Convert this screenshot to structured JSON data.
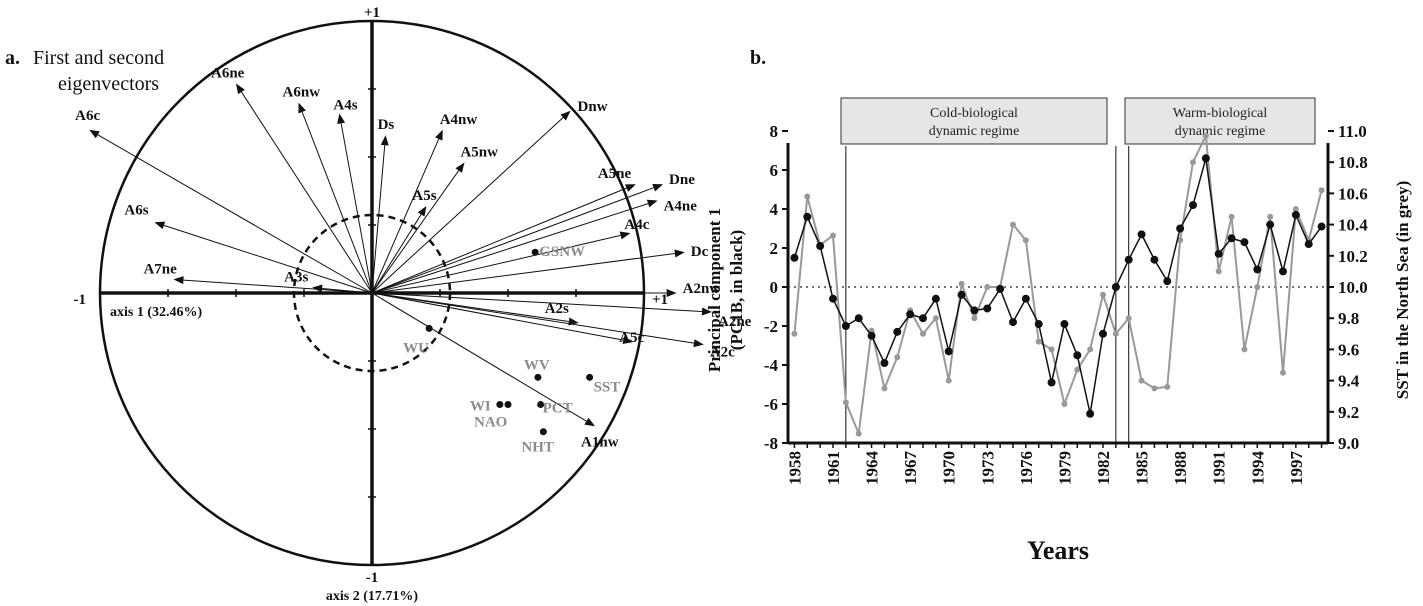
{
  "panel_a": {
    "letter": "a.",
    "title_line1": "First and second",
    "title_line2": "eigenvectors",
    "axis1_label": "axis 1 (32.46%)",
    "axis2_label": "axis 2 (17.71%)",
    "axis_end_pos_y": "+1",
    "axis_end_neg_y": "-1",
    "axis_end_pos_x": "+1",
    "axis_end_neg_x": "-1"
  },
  "panel_b": {
    "letter": "b.",
    "regime_cold_line1": "Cold-biological",
    "regime_cold_line2": "dynamic regime",
    "regime_warm_line1": "Warm-biological",
    "regime_warm_line2": "dynamic regime",
    "xlabel": "Years",
    "ylabel_left_line1": "Principal component 1",
    "ylabel_left_line2": "(PC1B, in black)",
    "ylabel_right": "SST in the North Sea (in grey)"
  },
  "chart_data": [
    {
      "type": "scatter",
      "title": "First and second eigenvectors",
      "xlabel": "axis 1 (32.46%)",
      "ylabel": "axis 2 (17.71%)",
      "xlim": [
        -1,
        1
      ],
      "ylim": [
        -1,
        1
      ],
      "circle_inner_radius": 0.4,
      "vectors": [
        {
          "label": "A6ne",
          "x": -0.5,
          "y": 0.77
        },
        {
          "label": "A6nw",
          "x": -0.27,
          "y": 0.7
        },
        {
          "label": "A4s",
          "x": -0.12,
          "y": 0.66
        },
        {
          "label": "A6c",
          "x": -1.04,
          "y": 0.6
        },
        {
          "label": "Ds",
          "x": 0.05,
          "y": 0.58
        },
        {
          "label": "A4nw",
          "x": 0.26,
          "y": 0.6
        },
        {
          "label": "Dnw",
          "x": 0.73,
          "y": 0.67
        },
        {
          "label": "A5nw",
          "x": 0.34,
          "y": 0.48
        },
        {
          "label": "A5s",
          "x": 0.2,
          "y": 0.32
        },
        {
          "label": "A5ne",
          "x": 0.97,
          "y": 0.4
        },
        {
          "label": "Dne",
          "x": 1.07,
          "y": 0.4
        },
        {
          "label": "A4ne",
          "x": 1.05,
          "y": 0.34
        },
        {
          "label": "A4c",
          "x": 0.95,
          "y": 0.22
        },
        {
          "label": "Dc",
          "x": 1.15,
          "y": 0.15
        },
        {
          "label": "A6s",
          "x": -0.8,
          "y": 0.26
        },
        {
          "label": "A7ne",
          "x": -0.73,
          "y": 0.05
        },
        {
          "label": "A3s",
          "x": -0.22,
          "y": 0.02
        },
        {
          "label": "A2nw",
          "x": 1.12,
          "y": 0.0
        },
        {
          "label": "A2s",
          "x": 0.76,
          "y": -0.11
        },
        {
          "label": "A2ne",
          "x": 1.25,
          "y": -0.07
        },
        {
          "label": "A5c",
          "x": 0.96,
          "y": -0.18
        },
        {
          "label": "A2c",
          "x": 1.22,
          "y": -0.19
        },
        {
          "label": "A1nw",
          "x": 0.82,
          "y": -0.49
        }
      ],
      "passive_variables": [
        {
          "label": "GSNW",
          "x": 0.6,
          "y": 0.15
        },
        {
          "label": "WU",
          "x": 0.21,
          "y": -0.13
        },
        {
          "label": "WV",
          "x": 0.61,
          "y": -0.31
        },
        {
          "label": "SST",
          "x": 0.8,
          "y": -0.31
        },
        {
          "label": "WI",
          "x": 0.47,
          "y": -0.41
        },
        {
          "label": "NAO",
          "x": 0.5,
          "y": -0.41
        },
        {
          "label": "PCT",
          "x": 0.62,
          "y": -0.41
        },
        {
          "label": "NHT",
          "x": 0.63,
          "y": -0.51
        }
      ]
    },
    {
      "type": "line",
      "xlabel": "Years",
      "ylabel": "Principal component 1 (PC1B, in black)",
      "y2label": "SST in the North Sea (in grey)",
      "xlim": [
        1957.5,
        1999.5
      ],
      "ylim": [
        -8,
        8
      ],
      "y2lim": [
        9.0,
        11.0
      ],
      "x_ticks": [
        1958,
        1961,
        1964,
        1967,
        1970,
        1973,
        1976,
        1979,
        1982,
        1985,
        1988,
        1991,
        1994,
        1997
      ],
      "y_ticks": [
        -8,
        -6,
        -4,
        -2,
        0,
        2,
        4,
        6,
        8
      ],
      "y2_ticks": [
        "9.0",
        "9.2",
        "9.4",
        "9.6",
        "9.8",
        "10.0",
        "10.2",
        "10.4",
        "10.6",
        "10.8",
        "11.0"
      ],
      "regime_breaks": [
        1962,
        1983,
        1984
      ],
      "zero_line": 0,
      "x": [
        1958,
        1959,
        1960,
        1961,
        1962,
        1963,
        1964,
        1965,
        1966,
        1967,
        1968,
        1969,
        1970,
        1971,
        1972,
        1973,
        1974,
        1975,
        1976,
        1977,
        1978,
        1979,
        1980,
        1981,
        1982,
        1983,
        1984,
        1985,
        1986,
        1987,
        1988,
        1989,
        1990,
        1991,
        1992,
        1993,
        1994,
        1995,
        1996,
        1997,
        1998,
        1999
      ],
      "series": [
        {
          "name": "PC1B",
          "axis": "left",
          "color": "#111111",
          "values": [
            1.5,
            3.6,
            2.1,
            -0.6,
            -2.0,
            -1.6,
            -2.5,
            -3.9,
            -2.3,
            -1.4,
            -1.6,
            -0.6,
            -3.3,
            -0.4,
            -1.2,
            -1.1,
            -0.1,
            -1.8,
            -0.6,
            -1.9,
            -4.9,
            -1.9,
            -3.5,
            -6.5,
            -2.4,
            0.0,
            1.4,
            2.7,
            1.4,
            0.3,
            3.0,
            4.2,
            6.6,
            1.7,
            2.5,
            2.3,
            0.9,
            3.2,
            0.8,
            3.7,
            2.2,
            3.1
          ]
        },
        {
          "name": "SST",
          "axis": "right",
          "color": "#999999",
          "values": [
            9.7,
            10.58,
            10.27,
            10.33,
            9.26,
            9.06,
            9.72,
            9.35,
            9.55,
            9.85,
            9.7,
            9.8,
            9.4,
            10.02,
            9.8,
            10.0,
            10.0,
            10.4,
            10.3,
            9.65,
            9.6,
            9.25,
            9.47,
            9.6,
            9.95,
            9.7,
            9.8,
            9.4,
            9.35,
            9.36,
            10.3,
            10.8,
            10.97,
            10.1,
            10.45,
            9.6,
            10.0,
            10.45,
            9.45,
            10.5,
            10.3,
            10.62
          ]
        }
      ]
    }
  ]
}
